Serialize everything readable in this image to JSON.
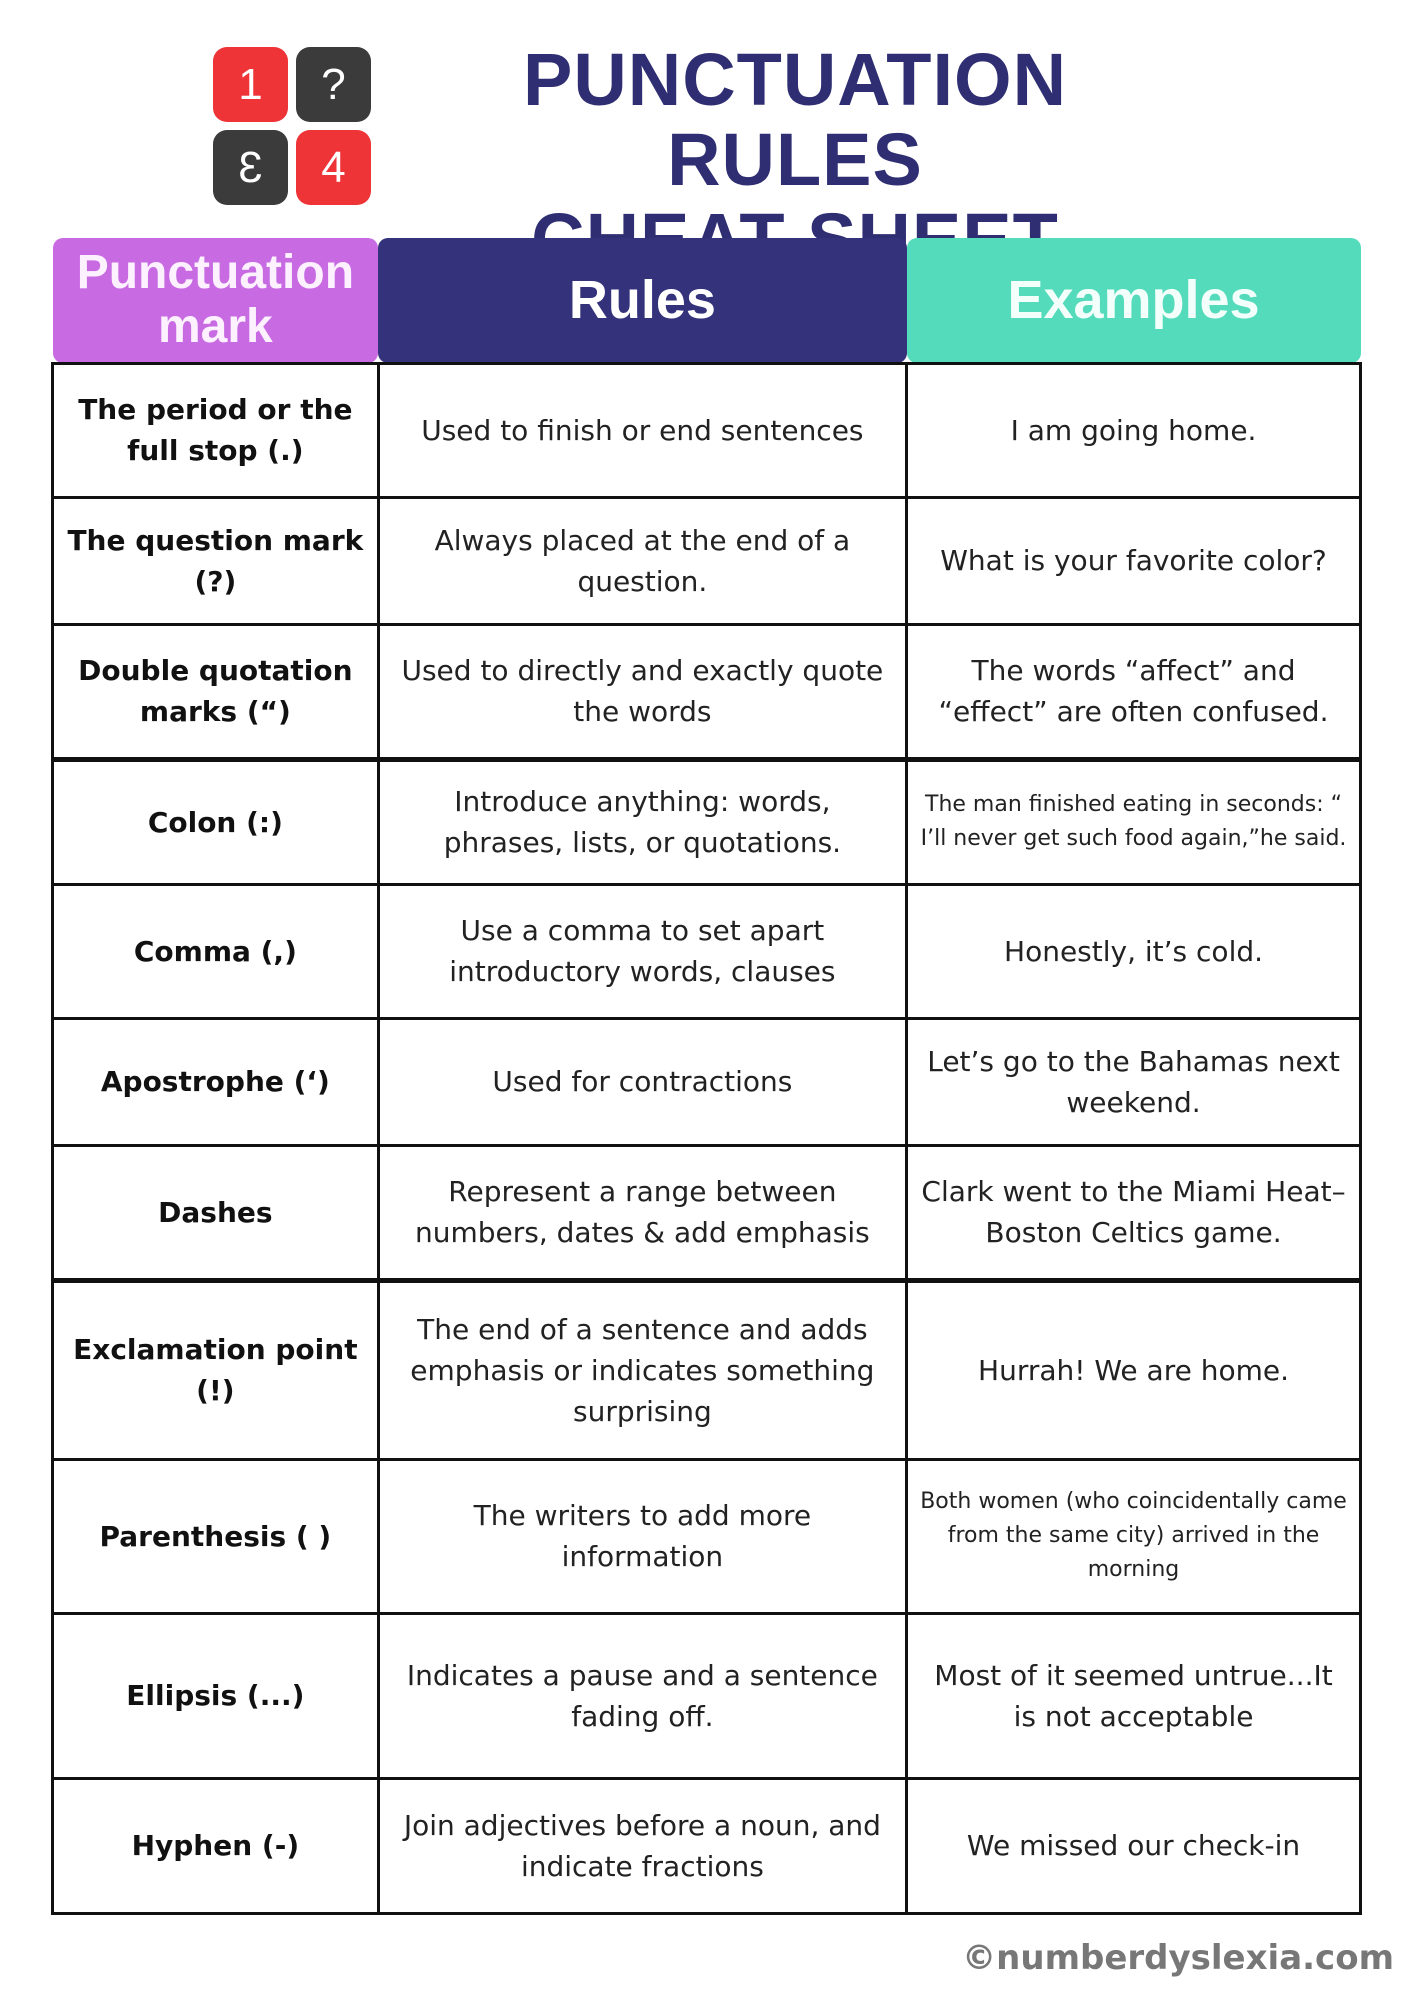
{
  "logo": {
    "tiles": [
      "1",
      "?",
      "3",
      "4"
    ],
    "colors": {
      "red": "#ef3438",
      "dark": "#3b3b3b"
    }
  },
  "title": {
    "line1": "PUNCTUATION RULES",
    "line2": "CHEAT SHEET"
  },
  "headers": {
    "mark": "Punctuation mark",
    "rules": "Rules",
    "examples": "Examples"
  },
  "colors": {
    "mark_header": "#c86be3",
    "rules_header": "#33327a",
    "examples_header": "#53dbbb",
    "title": "#2f2e72"
  },
  "rows": [
    {
      "mark": "The period or the full stop (.)",
      "rule": "Used to finish or end sentences",
      "example": "I am going home."
    },
    {
      "mark": "The question mark (?)",
      "rule": "Always placed at the end of a question.",
      "example": "What is your favorite color?"
    },
    {
      "mark": "Double quotation marks (“)",
      "rule": "Used to directly and exactly quote the words",
      "example": "The words “affect” and “effect” are often confused."
    },
    {
      "mark": "Colon (:)",
      "rule": "Introduce anything: words, phrases, lists, or quotations.",
      "example": "The man finished eating in seconds: “ I’ll never get such food again,”he said."
    },
    {
      "mark": "Comma (,)",
      "rule": "Use a comma to set apart introductory words, clauses",
      "example": "Honestly, it’s cold."
    },
    {
      "mark": "Apostrophe (‘)",
      "rule": "Used for contractions",
      "example": "Let’s go to the Bahamas next weekend."
    },
    {
      "mark": "Dashes",
      "rule": "Represent a range between numbers, dates & add emphasis",
      "example": "Clark went to the Miami Heat–Boston Celtics game."
    },
    {
      "mark": "Exclamation point (!)",
      "rule": "The end of a sentence and adds emphasis or indicates something surprising",
      "example": "Hurrah! We are home."
    },
    {
      "mark": "Parenthesis ( )",
      "rule": "The writers to add more information",
      "example": "Both women (who coincidentally came from the same city) arrived in the morning"
    },
    {
      "mark": "Ellipsis (...)",
      "rule": "Indicates a pause and a sentence fading off.",
      "example": "Most of it seemed untrue...It is not acceptable"
    },
    {
      "mark": "Hyphen (-)",
      "rule": "Join adjectives before a noun, and indicate fractions",
      "example": "We missed our check-in"
    }
  ],
  "footer": "©numberdyslexia.com"
}
